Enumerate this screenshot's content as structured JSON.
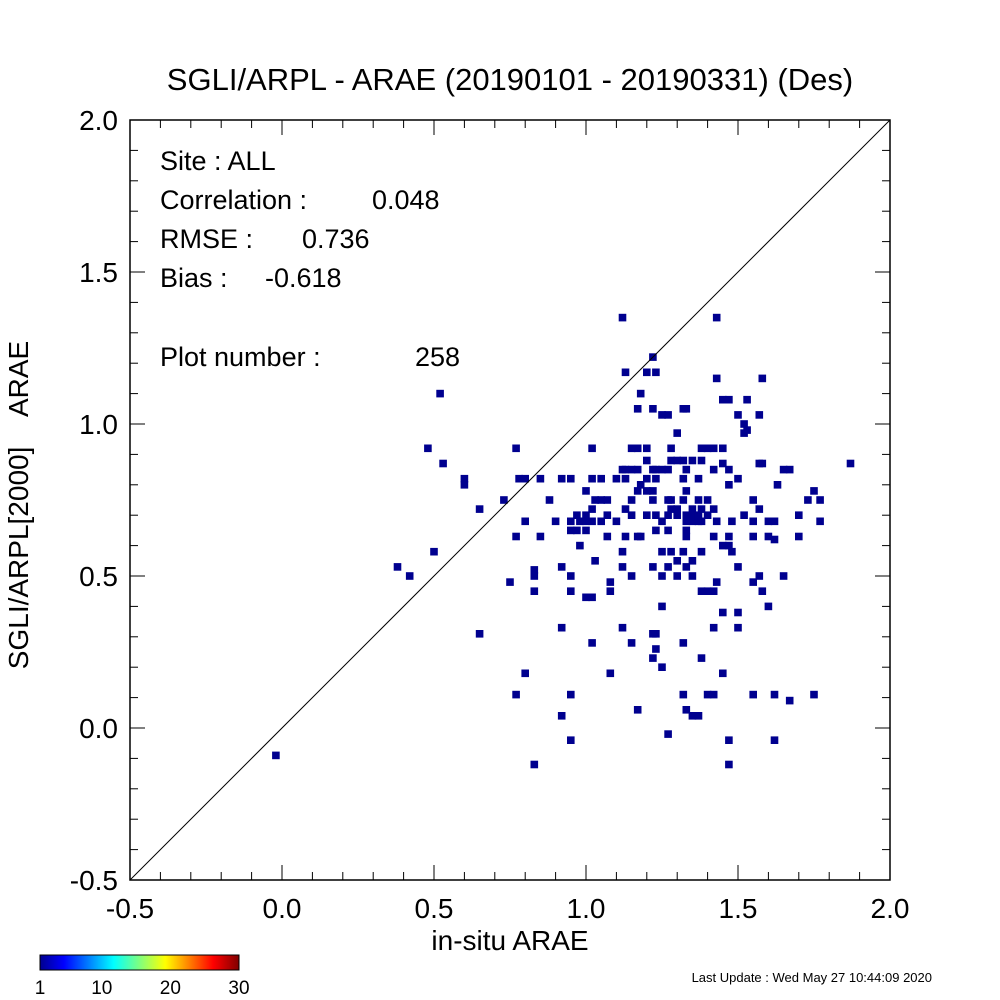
{
  "chart_data": {
    "type": "heatmap",
    "title": "SGLI/ARPL - ARAE (20190101 - 20190331) (Des)",
    "xlabel": "in-situ ARAE",
    "ylabel": "SGLI/ARPL[2000]    ARAE",
    "xlim": [
      -0.5,
      2.0
    ],
    "ylim": [
      -0.5,
      2.0
    ],
    "x_ticks": [
      {
        "value": -0.5,
        "label": "-0.5"
      },
      {
        "value": 0.0,
        "label": "0.0"
      },
      {
        "value": 0.5,
        "label": "0.5"
      },
      {
        "value": 1.0,
        "label": "1.0"
      },
      {
        "value": 1.5,
        "label": "1.5"
      },
      {
        "value": 2.0,
        "label": "2.0"
      }
    ],
    "y_ticks": [
      {
        "value": -0.5,
        "label": "-0.5"
      },
      {
        "value": 0.0,
        "label": "0.0"
      },
      {
        "value": 0.5,
        "label": "0.5"
      },
      {
        "value": 1.0,
        "label": "1.0"
      },
      {
        "value": 1.5,
        "label": "1.5"
      },
      {
        "value": 2.0,
        "label": "2.0"
      }
    ],
    "bin_size": 0.025,
    "one_to_one_line": true,
    "stats": {
      "site": "Site : ALL",
      "correlation_label": "Correlation :",
      "correlation_value": "0.048",
      "rmse_label": "RMSE :",
      "rmse_value": "0.736",
      "bias_label": "Bias :",
      "bias_value": "-0.618",
      "plot_number_label": "Plot number :",
      "plot_number_value": "258"
    },
    "colorbar": {
      "min": 1,
      "max": 30,
      "tick_labels": [
        "1",
        "10",
        "20",
        "30"
      ],
      "tick_values": [
        1,
        10,
        20,
        30
      ]
    },
    "points": [
      [
        -0.02,
        -0.09
      ],
      [
        0.38,
        0.53
      ],
      [
        0.42,
        0.5
      ],
      [
        0.48,
        0.92
      ],
      [
        0.5,
        0.58
      ],
      [
        0.52,
        1.1
      ],
      [
        0.53,
        0.87
      ],
      [
        0.6,
        0.8
      ],
      [
        0.6,
        0.82
      ],
      [
        0.65,
        0.72
      ],
      [
        0.65,
        0.31
      ],
      [
        0.73,
        0.75
      ],
      [
        0.75,
        0.48
      ],
      [
        0.77,
        0.63
      ],
      [
        0.77,
        0.92
      ],
      [
        0.77,
        0.11
      ],
      [
        0.78,
        0.82
      ],
      [
        0.8,
        0.82
      ],
      [
        0.8,
        0.68
      ],
      [
        0.8,
        0.18
      ],
      [
        0.83,
        0.45
      ],
      [
        0.83,
        0.5
      ],
      [
        0.83,
        0.52
      ],
      [
        0.83,
        -0.12
      ],
      [
        0.85,
        0.82
      ],
      [
        0.85,
        0.63
      ],
      [
        0.88,
        0.75
      ],
      [
        0.9,
        0.68
      ],
      [
        0.92,
        0.82
      ],
      [
        0.92,
        0.53
      ],
      [
        0.92,
        0.33
      ],
      [
        0.92,
        0.04
      ],
      [
        0.95,
        0.82
      ],
      [
        0.95,
        0.68
      ],
      [
        0.95,
        0.65
      ],
      [
        0.95,
        0.5
      ],
      [
        0.95,
        0.45
      ],
      [
        0.95,
        0.11
      ],
      [
        0.95,
        -0.04
      ],
      [
        0.97,
        0.7
      ],
      [
        0.97,
        0.65
      ],
      [
        0.98,
        0.68
      ],
      [
        0.98,
        0.6
      ],
      [
        1.0,
        0.78
      ],
      [
        1.0,
        0.7
      ],
      [
        1.0,
        0.68
      ],
      [
        1.0,
        0.65
      ],
      [
        1.0,
        0.43
      ],
      [
        1.02,
        0.92
      ],
      [
        1.02,
        0.82
      ],
      [
        1.02,
        0.72
      ],
      [
        1.02,
        0.68
      ],
      [
        1.02,
        0.43
      ],
      [
        1.02,
        0.28
      ],
      [
        1.03,
        0.75
      ],
      [
        1.03,
        0.55
      ],
      [
        1.05,
        0.82
      ],
      [
        1.05,
        0.75
      ],
      [
        1.05,
        0.68
      ],
      [
        1.07,
        0.75
      ],
      [
        1.07,
        0.7
      ],
      [
        1.07,
        0.63
      ],
      [
        1.08,
        0.48
      ],
      [
        1.08,
        0.45
      ],
      [
        1.08,
        0.18
      ],
      [
        1.1,
        0.82
      ],
      [
        1.1,
        0.68
      ],
      [
        1.12,
        1.35
      ],
      [
        1.12,
        0.85
      ],
      [
        1.12,
        0.58
      ],
      [
        1.12,
        0.53
      ],
      [
        1.12,
        0.33
      ],
      [
        1.13,
        0.85
      ],
      [
        1.13,
        0.82
      ],
      [
        1.13,
        0.72
      ],
      [
        1.13,
        0.63
      ],
      [
        1.13,
        1.17
      ],
      [
        1.15,
        0.92
      ],
      [
        1.15,
        0.85
      ],
      [
        1.15,
        0.75
      ],
      [
        1.15,
        0.7
      ],
      [
        1.15,
        0.5
      ],
      [
        1.15,
        0.28
      ],
      [
        1.17,
        1.05
      ],
      [
        1.17,
        0.92
      ],
      [
        1.17,
        0.85
      ],
      [
        1.17,
        0.78
      ],
      [
        1.17,
        0.63
      ],
      [
        1.17,
        0.06
      ],
      [
        1.18,
        1.1
      ],
      [
        1.18,
        0.8
      ],
      [
        1.2,
        1.17
      ],
      [
        1.2,
        0.92
      ],
      [
        1.2,
        0.88
      ],
      [
        1.2,
        0.82
      ],
      [
        1.2,
        0.78
      ],
      [
        1.2,
        0.7
      ],
      [
        1.22,
        1.22
      ],
      [
        1.22,
        1.05
      ],
      [
        1.22,
        0.85
      ],
      [
        1.22,
        0.78
      ],
      [
        1.22,
        0.75
      ],
      [
        1.22,
        0.53
      ],
      [
        1.22,
        0.31
      ],
      [
        1.22,
        0.23
      ],
      [
        1.23,
        1.17
      ],
      [
        1.23,
        0.85
      ],
      [
        1.23,
        0.82
      ],
      [
        1.23,
        0.7
      ],
      [
        1.23,
        0.65
      ],
      [
        1.23,
        0.31
      ],
      [
        1.23,
        0.26
      ],
      [
        1.25,
        1.03
      ],
      [
        1.25,
        0.85
      ],
      [
        1.25,
        0.68
      ],
      [
        1.25,
        0.58
      ],
      [
        1.25,
        0.5
      ],
      [
        1.25,
        0.2
      ],
      [
        1.27,
        1.03
      ],
      [
        1.27,
        0.85
      ],
      [
        1.27,
        0.75
      ],
      [
        1.27,
        0.7
      ],
      [
        1.27,
        0.65
      ],
      [
        1.27,
        0.53
      ],
      [
        1.27,
        -0.02
      ],
      [
        1.28,
        0.92
      ],
      [
        1.28,
        0.88
      ],
      [
        1.28,
        0.75
      ],
      [
        1.28,
        0.72
      ],
      [
        1.28,
        0.58
      ],
      [
        1.3,
        0.97
      ],
      [
        1.3,
        0.88
      ],
      [
        1.3,
        0.72
      ],
      [
        1.3,
        0.7
      ],
      [
        1.3,
        0.55
      ],
      [
        1.3,
        0.5
      ],
      [
        1.32,
        1.05
      ],
      [
        1.32,
        0.88
      ],
      [
        1.32,
        0.82
      ],
      [
        1.32,
        0.75
      ],
      [
        1.32,
        0.58
      ],
      [
        1.32,
        0.28
      ],
      [
        1.32,
        0.11
      ],
      [
        1.33,
        1.05
      ],
      [
        1.33,
        0.85
      ],
      [
        1.33,
        0.7
      ],
      [
        1.33,
        0.68
      ],
      [
        1.33,
        0.65
      ],
      [
        1.33,
        0.63
      ],
      [
        1.33,
        0.53
      ],
      [
        1.33,
        0.06
      ],
      [
        1.35,
        0.88
      ],
      [
        1.35,
        0.72
      ],
      [
        1.35,
        0.7
      ],
      [
        1.35,
        0.68
      ],
      [
        1.35,
        0.55
      ],
      [
        1.35,
        0.5
      ],
      [
        1.35,
        0.04
      ],
      [
        1.37,
        0.82
      ],
      [
        1.37,
        0.75
      ],
      [
        1.37,
        0.7
      ],
      [
        1.37,
        0.68
      ],
      [
        1.37,
        0.04
      ],
      [
        1.38,
        0.92
      ],
      [
        1.38,
        0.88
      ],
      [
        1.38,
        0.72
      ],
      [
        1.38,
        0.68
      ],
      [
        1.38,
        0.58
      ],
      [
        1.38,
        0.45
      ],
      [
        1.38,
        0.23
      ],
      [
        1.4,
        0.92
      ],
      [
        1.4,
        0.75
      ],
      [
        1.4,
        0.7
      ],
      [
        1.4,
        0.45
      ],
      [
        1.4,
        0.11
      ],
      [
        1.42,
        0.92
      ],
      [
        1.42,
        0.85
      ],
      [
        1.42,
        0.72
      ],
      [
        1.42,
        0.63
      ],
      [
        1.42,
        0.45
      ],
      [
        1.42,
        0.33
      ],
      [
        1.42,
        0.11
      ],
      [
        1.43,
        0.68
      ],
      [
        1.43,
        0.48
      ],
      [
        1.43,
        1.35
      ],
      [
        1.43,
        1.15
      ],
      [
        1.45,
        1.08
      ],
      [
        1.45,
        0.92
      ],
      [
        1.45,
        0.87
      ],
      [
        1.45,
        0.6
      ],
      [
        1.45,
        0.38
      ],
      [
        1.45,
        0.18
      ],
      [
        1.47,
        1.08
      ],
      [
        1.47,
        0.85
      ],
      [
        1.47,
        0.8
      ],
      [
        1.47,
        0.63
      ],
      [
        1.47,
        0.6
      ],
      [
        1.47,
        -0.04
      ],
      [
        1.47,
        -0.12
      ],
      [
        1.48,
        0.68
      ],
      [
        1.48,
        0.58
      ],
      [
        1.5,
        1.03
      ],
      [
        1.5,
        0.82
      ],
      [
        1.5,
        0.53
      ],
      [
        1.5,
        0.33
      ],
      [
        1.5,
        0.38
      ],
      [
        1.52,
        1.0
      ],
      [
        1.52,
        0.97
      ],
      [
        1.52,
        0.7
      ],
      [
        1.53,
        1.08
      ],
      [
        1.53,
        0.98
      ],
      [
        1.55,
        0.75
      ],
      [
        1.55,
        0.68
      ],
      [
        1.55,
        0.63
      ],
      [
        1.55,
        0.48
      ],
      [
        1.55,
        0.11
      ],
      [
        1.57,
        1.03
      ],
      [
        1.57,
        0.87
      ],
      [
        1.57,
        0.72
      ],
      [
        1.57,
        0.5
      ],
      [
        1.58,
        0.87
      ],
      [
        1.58,
        0.45
      ],
      [
        1.58,
        1.15
      ],
      [
        1.6,
        0.68
      ],
      [
        1.6,
        0.63
      ],
      [
        1.6,
        0.4
      ],
      [
        1.62,
        0.68
      ],
      [
        1.62,
        0.62
      ],
      [
        1.62,
        0.11
      ],
      [
        1.62,
        -0.04
      ],
      [
        1.63,
        0.8
      ],
      [
        1.65,
        0.85
      ],
      [
        1.65,
        0.5
      ],
      [
        1.67,
        0.85
      ],
      [
        1.67,
        0.09
      ],
      [
        1.7,
        0.7
      ],
      [
        1.7,
        0.63
      ],
      [
        1.73,
        0.75
      ],
      [
        1.75,
        0.78
      ],
      [
        1.75,
        0.11
      ],
      [
        1.77,
        0.75
      ],
      [
        1.77,
        0.68
      ],
      [
        1.87,
        0.87
      ],
      [
        1.33,
        0.78
      ],
      [
        1.18,
        0.63
      ],
      [
        1.25,
        0.4
      ]
    ]
  },
  "footer": {
    "last_update": "Last Update : Wed May 27 10:44:09 2020"
  }
}
